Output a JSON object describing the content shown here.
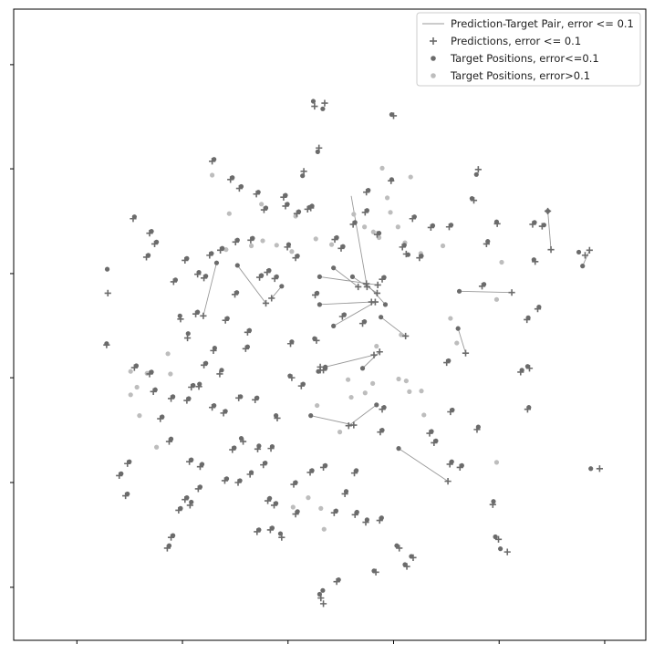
{
  "chart_data": {
    "type": "scatter",
    "title": "",
    "xlabel": "",
    "ylabel": "",
    "xlim": [
      0,
      100
    ],
    "ylim": [
      0,
      100
    ],
    "x_ticks": [
      10,
      26.7,
      43.4,
      60.1,
      76.8,
      93.5
    ],
    "y_ticks": [
      8.4,
      25.0,
      41.6,
      58.1,
      74.7,
      91.2
    ],
    "tick_labels_visible": false,
    "grid": false,
    "legend_position": "top-right",
    "colors": {
      "dark": "#6b6b6b",
      "light": "#bdbdbd",
      "line": "#999999"
    },
    "legend": [
      {
        "label": "Prediction-Target Pair, error <= 0.1",
        "marker": "line"
      },
      {
        "label": "Predictions, error <= 0.1",
        "marker": "plus"
      },
      {
        "label": "Target Positions, error<=0.1",
        "marker": "dot-dark"
      },
      {
        "label": "Target Positions, error>0.1",
        "marker": "dot-light"
      }
    ],
    "pairs": [
      [
        32.1,
        59.8,
        30.0,
        51.4
      ],
      [
        35.4,
        59.4,
        39.9,
        53.4
      ],
      [
        48.4,
        57.6,
        57.6,
        56.3
      ],
      [
        53.6,
        57.6,
        57.5,
        55.0
      ],
      [
        58.8,
        53.2,
        55.8,
        56.5
      ],
      [
        50.6,
        59.0,
        54.5,
        56.0
      ],
      [
        48.4,
        53.2,
        56.6,
        53.6
      ],
      [
        50.6,
        49.8,
        57.2,
        53.6
      ],
      [
        49.3,
        43.3,
        57.0,
        45.2
      ],
      [
        55.2,
        43.1,
        57.9,
        45.7
      ],
      [
        47.0,
        35.6,
        53.8,
        34.1
      ],
      [
        57.4,
        37.3,
        53.0,
        34.0
      ],
      [
        58.1,
        51.2,
        62.0,
        48.2
      ],
      [
        60.9,
        30.4,
        68.7,
        25.2
      ],
      [
        70.5,
        55.3,
        78.8,
        55.1
      ],
      [
        70.3,
        49.4,
        71.5,
        45.5
      ],
      [
        90.0,
        59.3,
        91.1,
        61.8
      ],
      [
        84.5,
        68.0,
        85.0,
        61.9
      ],
      [
        42.4,
        56.1,
        40.8,
        54.2
      ],
      [
        53.4,
        70.4,
        55.9,
        56.0
      ]
    ],
    "predictions": [
      [
        30.0,
        51.4
      ],
      [
        39.9,
        53.4
      ],
      [
        57.6,
        56.3
      ],
      [
        57.5,
        55.0
      ],
      [
        55.8,
        56.5
      ],
      [
        54.5,
        56.0
      ],
      [
        56.6,
        53.6
      ],
      [
        57.2,
        53.6
      ],
      [
        57.0,
        45.2
      ],
      [
        57.9,
        45.7
      ],
      [
        53.8,
        34.1
      ],
      [
        53.0,
        34.0
      ],
      [
        62.0,
        48.2
      ],
      [
        68.7,
        25.2
      ],
      [
        78.8,
        55.1
      ],
      [
        71.5,
        45.5
      ],
      [
        91.1,
        61.8
      ],
      [
        85.0,
        61.9
      ],
      [
        40.8,
        54.2
      ],
      [
        55.9,
        56.0
      ],
      [
        14.7,
        46.8
      ],
      [
        14.9,
        55.0
      ],
      [
        18.9,
        66.8
      ],
      [
        29.1,
        58.0
      ],
      [
        26.4,
        50.9
      ],
      [
        27.5,
        47.9
      ],
      [
        31.6,
        45.9
      ],
      [
        32.6,
        42.2
      ],
      [
        29.3,
        40.2
      ],
      [
        27.4,
        38.0
      ],
      [
        33.2,
        36.0
      ],
      [
        35.6,
        38.4
      ],
      [
        36.3,
        31.5
      ],
      [
        38.6,
        30.3
      ],
      [
        41.7,
        35.2
      ],
      [
        44.0,
        41.6
      ],
      [
        48.5,
        42.8
      ],
      [
        47.9,
        47.5
      ],
      [
        43.3,
        62.3
      ],
      [
        43.8,
        47.0
      ],
      [
        45.9,
        74.3
      ],
      [
        47.0,
        68.5
      ],
      [
        48.3,
        78.0
      ],
      [
        49.2,
        85.1
      ],
      [
        60.1,
        83.1
      ],
      [
        59.7,
        72.8
      ],
      [
        55.8,
        71.0
      ],
      [
        57.5,
        64.3
      ],
      [
        62.1,
        61.2
      ],
      [
        73.5,
        74.6
      ],
      [
        72.8,
        69.7
      ],
      [
        74.8,
        62.8
      ],
      [
        74.1,
        56.1
      ],
      [
        76.5,
        66.0
      ],
      [
        82.1,
        65.9
      ],
      [
        83.6,
        65.6
      ],
      [
        82.5,
        60.0
      ],
      [
        81.2,
        50.8
      ],
      [
        81.6,
        43.1
      ],
      [
        80.2,
        42.5
      ],
      [
        82.9,
        52.5
      ],
      [
        90.4,
        61.0
      ],
      [
        92.7,
        27.2
      ],
      [
        78.1,
        14.0
      ],
      [
        76.7,
        16.0
      ],
      [
        61.0,
        14.6
      ],
      [
        63.2,
        13.1
      ],
      [
        62.2,
        11.7
      ],
      [
        57.3,
        10.8
      ],
      [
        51.1,
        9.3
      ],
      [
        48.6,
        6.7
      ],
      [
        42.4,
        16.3
      ],
      [
        44.6,
        20.0
      ],
      [
        40.2,
        22.1
      ],
      [
        37.4,
        26.3
      ],
      [
        33.4,
        25.3
      ],
      [
        27.9,
        21.4
      ],
      [
        26.1,
        20.6
      ],
      [
        24.9,
        16.3
      ],
      [
        24.3,
        14.6
      ],
      [
        29.5,
        27.5
      ],
      [
        24.6,
        31.5
      ],
      [
        24.9,
        38.3
      ],
      [
        31.4,
        36.9
      ],
      [
        35.5,
        25.0
      ],
      [
        40.7,
        30.4
      ],
      [
        49.0,
        27.4
      ],
      [
        52.4,
        23.2
      ],
      [
        53.9,
        26.5
      ],
      [
        54.0,
        19.9
      ],
      [
        57.9,
        19.0
      ],
      [
        55.7,
        18.7
      ],
      [
        65.8,
        32.8
      ],
      [
        69.0,
        27.9
      ],
      [
        73.3,
        33.4
      ],
      [
        70.6,
        27.4
      ],
      [
        66.5,
        31.3
      ],
      [
        75.8,
        21.5
      ],
      [
        22.1,
        39.4
      ],
      [
        21.5,
        42.2
      ],
      [
        23.2,
        35.1
      ],
      [
        19.1,
        43.2
      ],
      [
        28.1,
        40.1
      ],
      [
        30.1,
        43.6
      ],
      [
        28.8,
        51.7
      ],
      [
        33.5,
        50.7
      ],
      [
        37.0,
        48.8
      ],
      [
        36.7,
        46.2
      ],
      [
        35.0,
        54.8
      ],
      [
        30.1,
        57.4
      ],
      [
        38.9,
        57.5
      ],
      [
        41.3,
        57.3
      ],
      [
        44.6,
        60.6
      ],
      [
        47.7,
        54.7
      ],
      [
        52.0,
        51.3
      ],
      [
        55.2,
        50.2
      ],
      [
        58.3,
        57.2
      ],
      [
        61.5,
        62.3
      ],
      [
        64.2,
        60.6
      ],
      [
        66.0,
        65.4
      ],
      [
        68.9,
        65.5
      ],
      [
        51.8,
        62.1
      ],
      [
        53.7,
        65.9
      ],
      [
        55.6,
        67.8
      ],
      [
        63.1,
        66.8
      ],
      [
        37.5,
        63.4
      ],
      [
        39.6,
        68.2
      ],
      [
        43.0,
        68.8
      ],
      [
        44.8,
        67.6
      ],
      [
        46.5,
        68.3
      ],
      [
        35.7,
        71.6
      ],
      [
        34.3,
        73.0
      ],
      [
        31.4,
        75.9
      ],
      [
        27.1,
        60.2
      ],
      [
        25.3,
        56.8
      ],
      [
        22.3,
        62.8
      ],
      [
        21.0,
        60.7
      ],
      [
        21.5,
        64.5
      ],
      [
        31.0,
        61.0
      ],
      [
        32.7,
        61.8
      ],
      [
        38.4,
        70.7
      ],
      [
        42.7,
        70.2
      ],
      [
        50.8,
        63.5
      ],
      [
        40.1,
        58.3
      ],
      [
        35.1,
        63.1
      ],
      [
        18.0,
        28.0
      ],
      [
        16.7,
        26.1
      ],
      [
        17.7,
        22.9
      ],
      [
        27.1,
        22.3
      ],
      [
        27.8,
        28.3
      ],
      [
        29.2,
        24.0
      ],
      [
        34.6,
        30.2
      ],
      [
        39.5,
        27.8
      ],
      [
        44.3,
        24.7
      ],
      [
        46.9,
        26.6
      ],
      [
        50.7,
        20.2
      ],
      [
        40.6,
        17.5
      ],
      [
        38.5,
        17.2
      ],
      [
        41.2,
        21.4
      ],
      [
        38.2,
        38.1
      ],
      [
        49.0,
        42.8
      ],
      [
        58.3,
        36.6
      ],
      [
        58.0,
        33.0
      ],
      [
        69.1,
        36.2
      ],
      [
        84.5,
        68.0
      ],
      [
        49.0,
        5.8
      ],
      [
        47.6,
        84.6
      ],
      [
        81.3,
        36.6
      ],
      [
        68.5,
        44.0
      ],
      [
        45.5,
        40.3
      ],
      [
        48.5,
        43.3
      ]
    ],
    "targets_dark": [
      [
        32.1,
        59.8
      ],
      [
        35.4,
        59.4
      ],
      [
        48.4,
        57.6
      ],
      [
        53.6,
        57.6
      ],
      [
        58.8,
        53.2
      ],
      [
        50.6,
        59.0
      ],
      [
        48.4,
        53.2
      ],
      [
        50.6,
        49.8
      ],
      [
        49.3,
        43.3
      ],
      [
        55.2,
        43.1
      ],
      [
        47.0,
        35.6
      ],
      [
        57.4,
        37.3
      ],
      [
        58.1,
        51.2
      ],
      [
        60.9,
        30.4
      ],
      [
        70.5,
        55.3
      ],
      [
        70.3,
        49.4
      ],
      [
        90.0,
        59.3
      ],
      [
        84.5,
        68.0
      ],
      [
        42.4,
        56.1
      ],
      [
        14.7,
        47.0
      ],
      [
        14.8,
        58.8
      ],
      [
        19.1,
        67.1
      ],
      [
        29.3,
        58.3
      ],
      [
        26.3,
        51.4
      ],
      [
        27.6,
        48.6
      ],
      [
        31.8,
        46.3
      ],
      [
        32.9,
        42.8
      ],
      [
        29.4,
        40.6
      ],
      [
        27.7,
        38.3
      ],
      [
        33.5,
        36.3
      ],
      [
        35.9,
        38.6
      ],
      [
        36.0,
        32.0
      ],
      [
        38.8,
        30.8
      ],
      [
        41.5,
        35.6
      ],
      [
        43.7,
        41.9
      ],
      [
        48.2,
        42.6
      ],
      [
        47.6,
        47.8
      ],
      [
        43.5,
        62.7
      ],
      [
        44.0,
        47.3
      ],
      [
        45.7,
        73.6
      ],
      [
        47.2,
        68.8
      ],
      [
        48.1,
        77.4
      ],
      [
        48.9,
        84.2
      ],
      [
        59.8,
        83.3
      ],
      [
        59.8,
        73.0
      ],
      [
        56.1,
        71.3
      ],
      [
        57.8,
        64.5
      ],
      [
        62.4,
        61.1
      ],
      [
        73.2,
        73.8
      ],
      [
        72.5,
        70.0
      ],
      [
        75.0,
        63.2
      ],
      [
        74.4,
        56.4
      ],
      [
        76.4,
        66.3
      ],
      [
        82.4,
        66.2
      ],
      [
        83.9,
        65.8
      ],
      [
        82.3,
        60.3
      ],
      [
        81.4,
        51.1
      ],
      [
        81.3,
        43.4
      ],
      [
        80.4,
        42.8
      ],
      [
        83.1,
        52.8
      ],
      [
        89.4,
        61.5
      ],
      [
        91.3,
        27.2
      ],
      [
        77.0,
        14.5
      ],
      [
        76.2,
        16.4
      ],
      [
        60.6,
        15.0
      ],
      [
        62.9,
        13.3
      ],
      [
        61.9,
        12.0
      ],
      [
        57.0,
        11.0
      ],
      [
        51.4,
        9.6
      ],
      [
        48.4,
        7.3
      ],
      [
        42.2,
        16.9
      ],
      [
        44.9,
        20.4
      ],
      [
        40.5,
        22.5
      ],
      [
        37.6,
        26.6
      ],
      [
        33.7,
        25.6
      ],
      [
        28.1,
        21.9
      ],
      [
        26.4,
        20.9
      ],
      [
        25.2,
        16.6
      ],
      [
        24.6,
        15.0
      ],
      [
        29.8,
        27.9
      ],
      [
        24.9,
        31.9
      ],
      [
        25.2,
        38.6
      ],
      [
        31.7,
        37.2
      ],
      [
        35.8,
        25.3
      ],
      [
        40.9,
        30.7
      ],
      [
        49.3,
        27.7
      ],
      [
        52.6,
        23.6
      ],
      [
        54.2,
        26.9
      ],
      [
        54.3,
        20.3
      ],
      [
        58.2,
        19.4
      ],
      [
        55.9,
        19.1
      ],
      [
        66.1,
        33.1
      ],
      [
        69.3,
        28.3
      ],
      [
        73.5,
        33.8
      ],
      [
        70.9,
        27.7
      ],
      [
        66.8,
        31.6
      ],
      [
        75.9,
        22.0
      ],
      [
        22.4,
        39.7
      ],
      [
        21.8,
        42.5
      ],
      [
        23.5,
        35.4
      ],
      [
        19.4,
        43.5
      ],
      [
        28.4,
        40.4
      ],
      [
        30.4,
        43.9
      ],
      [
        29.1,
        52.0
      ],
      [
        33.8,
        51.0
      ],
      [
        37.3,
        49.1
      ],
      [
        37.0,
        46.5
      ],
      [
        35.3,
        55.1
      ],
      [
        30.4,
        57.7
      ],
      [
        39.2,
        57.8
      ],
      [
        41.6,
        57.6
      ],
      [
        44.9,
        60.9
      ],
      [
        48.0,
        55.0
      ],
      [
        52.3,
        51.6
      ],
      [
        55.5,
        50.5
      ],
      [
        58.6,
        57.5
      ],
      [
        61.8,
        62.6
      ],
      [
        64.5,
        60.9
      ],
      [
        66.3,
        65.7
      ],
      [
        69.2,
        65.8
      ],
      [
        52.1,
        62.4
      ],
      [
        54.0,
        66.2
      ],
      [
        55.9,
        68.1
      ],
      [
        63.4,
        67.1
      ],
      [
        37.8,
        63.7
      ],
      [
        39.9,
        68.5
      ],
      [
        43.3,
        69.1
      ],
      [
        45.1,
        67.9
      ],
      [
        46.8,
        68.6
      ],
      [
        36.0,
        71.9
      ],
      [
        34.6,
        73.3
      ],
      [
        31.7,
        76.2
      ],
      [
        27.4,
        60.5
      ],
      [
        25.6,
        57.1
      ],
      [
        22.6,
        63.1
      ],
      [
        21.3,
        61.0
      ],
      [
        21.8,
        64.8
      ],
      [
        31.3,
        61.3
      ],
      [
        33.0,
        62.1
      ],
      [
        38.7,
        71.0
      ],
      [
        43.0,
        70.5
      ],
      [
        51.1,
        63.8
      ],
      [
        40.4,
        58.6
      ],
      [
        35.4,
        63.4
      ],
      [
        18.3,
        28.3
      ],
      [
        17.0,
        26.4
      ],
      [
        18.0,
        23.2
      ],
      [
        27.4,
        22.6
      ],
      [
        28.1,
        28.6
      ],
      [
        29.5,
        24.3
      ],
      [
        34.9,
        30.5
      ],
      [
        39.8,
        28.1
      ],
      [
        44.6,
        25.0
      ],
      [
        47.2,
        26.9
      ],
      [
        51.0,
        20.5
      ],
      [
        40.9,
        17.8
      ],
      [
        38.8,
        17.5
      ],
      [
        41.5,
        21.7
      ],
      [
        38.5,
        38.4
      ],
      [
        49.3,
        43.1
      ],
      [
        58.6,
        36.9
      ],
      [
        58.3,
        33.3
      ],
      [
        69.4,
        36.5
      ],
      [
        48.9,
        7.9
      ],
      [
        47.4,
        85.4
      ],
      [
        81.5,
        36.9
      ],
      [
        68.8,
        44.3
      ],
      [
        45.8,
        40.6
      ]
    ],
    "targets_light": [
      [
        31.4,
        73.7
      ],
      [
        34.1,
        67.6
      ],
      [
        37.6,
        62.5
      ],
      [
        39.4,
        63.3
      ],
      [
        41.6,
        62.6
      ],
      [
        44.0,
        61.6
      ],
      [
        47.8,
        63.6
      ],
      [
        50.3,
        62.7
      ],
      [
        53.8,
        67.5
      ],
      [
        55.5,
        65.5
      ],
      [
        56.9,
        64.7
      ],
      [
        57.8,
        63.8
      ],
      [
        58.3,
        74.8
      ],
      [
        59.1,
        70.1
      ],
      [
        59.6,
        67.8
      ],
      [
        60.8,
        65.5
      ],
      [
        61.9,
        63.0
      ],
      [
        62.8,
        73.4
      ],
      [
        64.4,
        61.3
      ],
      [
        67.9,
        62.5
      ],
      [
        77.2,
        59.9
      ],
      [
        76.4,
        54.0
      ],
      [
        69.1,
        51.0
      ],
      [
        70.1,
        47.1
      ],
      [
        61.3,
        48.4
      ],
      [
        57.4,
        46.6
      ],
      [
        62.1,
        41.1
      ],
      [
        62.6,
        39.4
      ],
      [
        64.5,
        39.5
      ],
      [
        60.9,
        41.4
      ],
      [
        56.8,
        40.7
      ],
      [
        55.6,
        39.2
      ],
      [
        53.4,
        38.5
      ],
      [
        52.9,
        41.3
      ],
      [
        48.0,
        37.2
      ],
      [
        51.6,
        33.0
      ],
      [
        64.9,
        35.7
      ],
      [
        76.4,
        28.2
      ],
      [
        22.6,
        30.6
      ],
      [
        18.5,
        38.9
      ],
      [
        24.8,
        42.2
      ],
      [
        24.4,
        45.4
      ],
      [
        19.5,
        40.1
      ],
      [
        21.1,
        42.3
      ],
      [
        19.9,
        35.6
      ],
      [
        18.5,
        42.6
      ],
      [
        46.6,
        22.6
      ],
      [
        48.6,
        20.9
      ],
      [
        49.1,
        17.6
      ],
      [
        44.2,
        21.1
      ],
      [
        33.6,
        61.9
      ],
      [
        39.2,
        69.1
      ],
      [
        44.6,
        67.2
      ]
    ]
  }
}
